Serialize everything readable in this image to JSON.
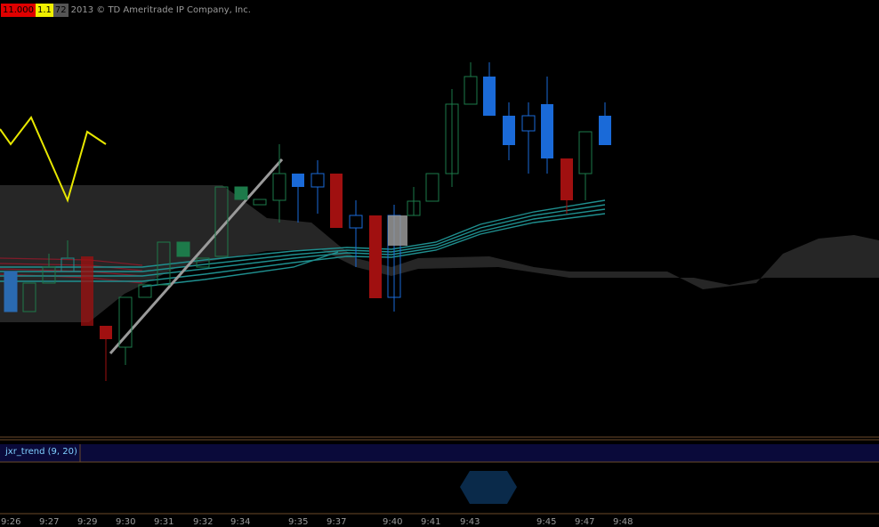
{
  "header": {
    "badges": [
      "11.000",
      "1.1",
      "72"
    ],
    "copyright": "2013 © TD Ameritrade IP Company, Inc."
  },
  "indicator": {
    "label": "jxr_trend (9, 20)"
  },
  "time_axis": [
    "9:26",
    "9:27",
    "9:29",
    "9:30",
    "9:31",
    "9:32",
    "9:34",
    "9:35",
    "9:37",
    "9:40",
    "9:41",
    "9:43",
    "9:45",
    "9:47",
    "9:48"
  ]
}
